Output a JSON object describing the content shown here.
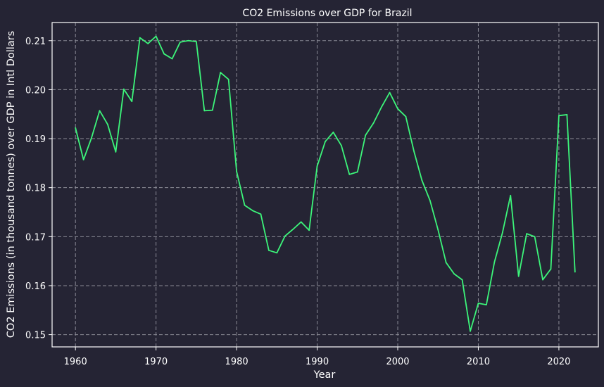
{
  "chart_data": {
    "type": "line",
    "title": "CO2 Emissions over GDP for Brazil",
    "xlabel": "Year",
    "ylabel": "CO2 Emissions (in thousand tonnes) over GDP in Intl Dollars",
    "xlim": [
      1957.1,
      2024.9
    ],
    "ylim": [
      0.1475,
      0.2137
    ],
    "xticks": [
      1960,
      1970,
      1980,
      1990,
      2000,
      2010,
      2020
    ],
    "yticks": [
      "0.15",
      "0.16",
      "0.17",
      "0.18",
      "0.19",
      "0.20",
      "0.21"
    ],
    "grid": true,
    "colors": {
      "background": "#252434",
      "line": "#3cf57a",
      "grid": "#8a8a95",
      "frame": "#ffffff"
    },
    "series": [
      {
        "x": [
          1960,
          1961,
          1962,
          1963,
          1964,
          1965,
          1966,
          1967,
          1968,
          1969,
          1970,
          1971,
          1972,
          1973,
          1974,
          1975,
          1976,
          1977,
          1978,
          1979,
          1980,
          1981,
          1982,
          1983,
          1984,
          1985,
          1986,
          1987,
          1988,
          1989,
          1990,
          1991,
          1992,
          1993,
          1994,
          1995,
          1996,
          1997,
          1998,
          1999,
          2000,
          2001,
          2002,
          2003,
          2004,
          2005,
          2006,
          2007,
          2008,
          2009,
          2010,
          2011,
          2012,
          2013,
          2014,
          2015,
          2016,
          2017,
          2018,
          2019,
          2020,
          2021,
          2022
        ],
        "values": [
          0.1922,
          0.1857,
          0.1902,
          0.1957,
          0.1929,
          0.1873,
          0.2001,
          0.1976,
          0.2106,
          0.2094,
          0.2109,
          0.2073,
          0.2063,
          0.2097,
          0.21,
          0.2098,
          0.1957,
          0.1958,
          0.2035,
          0.2021,
          0.1833,
          0.1764,
          0.1753,
          0.1746,
          0.1672,
          0.1667,
          0.1701,
          0.1715,
          0.173,
          0.1713,
          0.1844,
          0.1894,
          0.1913,
          0.1886,
          0.1827,
          0.1832,
          0.1907,
          0.1932,
          0.1965,
          0.1994,
          0.1961,
          0.1945,
          0.1875,
          0.1815,
          0.1774,
          0.1714,
          0.1647,
          0.1624,
          0.1612,
          0.1507,
          0.1564,
          0.1561,
          0.1648,
          0.1708,
          0.1784,
          0.1619,
          0.1706,
          0.17,
          0.1612,
          0.1634,
          0.1947,
          0.1949,
          0.1628
        ]
      }
    ]
  }
}
